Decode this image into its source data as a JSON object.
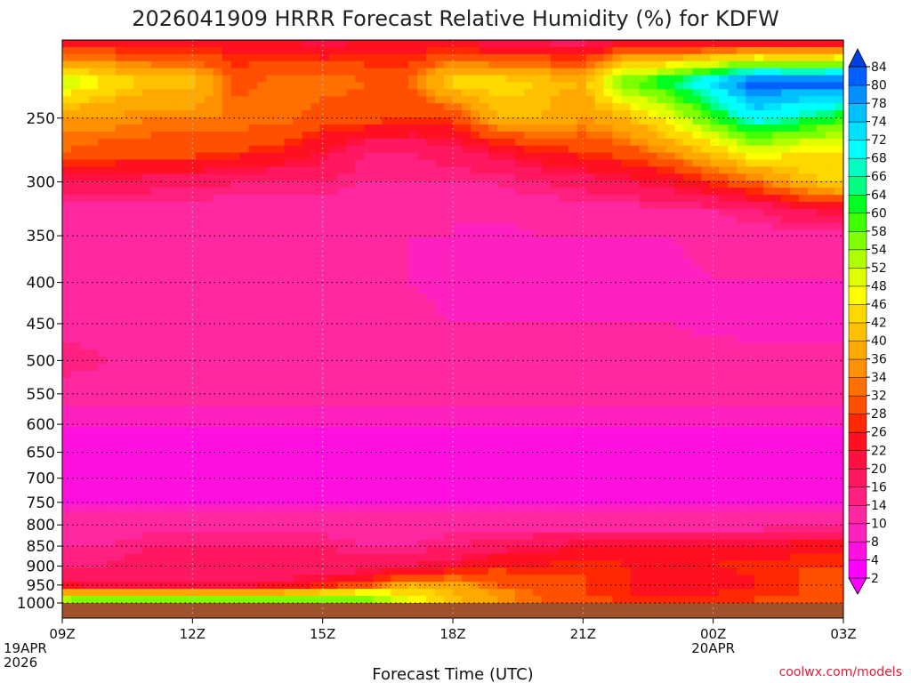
{
  "chart_data": {
    "type": "heatmap",
    "title": "2026041909 HRRR Forecast Relative Humidity (%) for KDFW",
    "xlabel": "Forecast Time (UTC)",
    "ylabel": "",
    "x_ticks": [
      {
        "hour": 0,
        "lines": [
          "09Z",
          "19APR",
          "2026"
        ]
      },
      {
        "hour": 3,
        "lines": [
          "12Z"
        ]
      },
      {
        "hour": 6,
        "lines": [
          "15Z"
        ]
      },
      {
        "hour": 9,
        "lines": [
          "18Z"
        ]
      },
      {
        "hour": 12,
        "lines": [
          "21Z"
        ]
      },
      {
        "hour": 15,
        "lines": [
          "00Z",
          "20APR"
        ]
      },
      {
        "hour": 18,
        "lines": [
          "03Z"
        ]
      }
    ],
    "x_hours": [
      0,
      1,
      2,
      3,
      4,
      5,
      6,
      7,
      8,
      9,
      10,
      11,
      12,
      13,
      14,
      15,
      16,
      17,
      18
    ],
    "y_ticks": [
      250,
      300,
      350,
      400,
      450,
      500,
      550,
      600,
      650,
      700,
      750,
      800,
      850,
      900,
      950,
      1000
    ],
    "ylim": [
      1000,
      200
    ],
    "y_scale": "log-pressure",
    "grid": true,
    "pressure_levels": [
      200,
      225,
      250,
      275,
      300,
      325,
      350,
      400,
      450,
      500,
      550,
      600,
      650,
      700,
      750,
      800,
      850,
      900,
      925,
      950,
      975,
      1000
    ],
    "values": [
      [
        20,
        22,
        22,
        22,
        24,
        22,
        20,
        22,
        22,
        22,
        18,
        18,
        18,
        20,
        20,
        18,
        18,
        18,
        18
      ],
      [
        52,
        46,
        42,
        42,
        30,
        34,
        34,
        32,
        32,
        44,
        44,
        42,
        40,
        58,
        64,
        74,
        84,
        82,
        84
      ],
      [
        36,
        36,
        34,
        34,
        34,
        34,
        30,
        30,
        28,
        28,
        40,
        40,
        36,
        40,
        48,
        60,
        70,
        66,
        60
      ],
      [
        32,
        30,
        30,
        30,
        28,
        26,
        22,
        16,
        16,
        18,
        22,
        26,
        28,
        30,
        36,
        42,
        50,
        46,
        46
      ],
      [
        20,
        20,
        18,
        18,
        16,
        16,
        16,
        14,
        14,
        14,
        14,
        16,
        18,
        20,
        22,
        28,
        32,
        40,
        44
      ],
      [
        12,
        12,
        12,
        12,
        12,
        12,
        12,
        10,
        10,
        10,
        12,
        12,
        12,
        12,
        14,
        14,
        16,
        20,
        22
      ],
      [
        12,
        12,
        10,
        10,
        10,
        10,
        10,
        10,
        10,
        10,
        8,
        10,
        10,
        10,
        10,
        12,
        12,
        12,
        12
      ],
      [
        10,
        10,
        10,
        10,
        10,
        10,
        10,
        10,
        10,
        8,
        8,
        8,
        8,
        8,
        8,
        10,
        10,
        10,
        10
      ],
      [
        12,
        12,
        12,
        12,
        12,
        12,
        12,
        12,
        12,
        10,
        10,
        10,
        10,
        10,
        10,
        8,
        8,
        8,
        8
      ],
      [
        16,
        14,
        14,
        14,
        14,
        14,
        14,
        14,
        14,
        14,
        14,
        14,
        14,
        14,
        14,
        14,
        12,
        12,
        12
      ],
      [
        12,
        12,
        12,
        12,
        12,
        12,
        12,
        12,
        12,
        12,
        12,
        12,
        12,
        12,
        12,
        12,
        12,
        12,
        12
      ],
      [
        8,
        8,
        8,
        8,
        8,
        8,
        8,
        8,
        8,
        8,
        8,
        8,
        8,
        8,
        8,
        8,
        8,
        8,
        8
      ],
      [
        4,
        4,
        4,
        4,
        4,
        4,
        4,
        4,
        4,
        4,
        4,
        4,
        4,
        4,
        4,
        4,
        4,
        4,
        4
      ],
      [
        4,
        4,
        4,
        4,
        4,
        4,
        4,
        4,
        4,
        4,
        4,
        4,
        4,
        4,
        4,
        4,
        4,
        4,
        4
      ],
      [
        8,
        8,
        8,
        8,
        8,
        8,
        8,
        8,
        8,
        8,
        8,
        8,
        8,
        8,
        8,
        8,
        8,
        8,
        8
      ],
      [
        12,
        12,
        12,
        12,
        12,
        12,
        12,
        12,
        12,
        12,
        12,
        12,
        12,
        12,
        12,
        12,
        12,
        12,
        12
      ],
      [
        14,
        14,
        16,
        16,
        16,
        16,
        16,
        14,
        14,
        16,
        18,
        20,
        22,
        22,
        22,
        22,
        22,
        24,
        24
      ],
      [
        16,
        16,
        18,
        20,
        20,
        20,
        18,
        18,
        20,
        22,
        26,
        26,
        28,
        26,
        26,
        26,
        28,
        28,
        28
      ],
      [
        18,
        18,
        18,
        18,
        18,
        18,
        20,
        22,
        28,
        30,
        30,
        28,
        28,
        26,
        24,
        24,
        26,
        28,
        28
      ],
      [
        22,
        20,
        20,
        20,
        20,
        22,
        26,
        30,
        40,
        38,
        32,
        30,
        28,
        26,
        24,
        24,
        26,
        28,
        28
      ],
      [
        40,
        44,
        42,
        40,
        40,
        44,
        46,
        52,
        46,
        40,
        36,
        32,
        28,
        26,
        26,
        26,
        28,
        28,
        28
      ],
      [
        62,
        66,
        66,
        64,
        64,
        64,
        62,
        58,
        50,
        42,
        36,
        32,
        30,
        28,
        26,
        26,
        28,
        28,
        28
      ]
    ],
    "colorbar": {
      "labels": [
        2,
        4,
        8,
        10,
        14,
        16,
        20,
        22,
        26,
        28,
        32,
        34,
        36,
        40,
        42,
        46,
        48,
        52,
        54,
        58,
        60,
        64,
        66,
        68,
        72,
        74,
        78,
        80,
        84
      ],
      "colors": [
        "#ff00ff",
        "#ff10e0",
        "#ff20c0",
        "#ff28a0",
        "#ff2080",
        "#ff1860",
        "#ff1040",
        "#ff1020",
        "#ff2800",
        "#ff5000",
        "#ff7000",
        "#ff9000",
        "#ffa800",
        "#ffc000",
        "#ffd800",
        "#ffff00",
        "#e0ff00",
        "#b0ff00",
        "#80ff00",
        "#40ff00",
        "#00ff20",
        "#00ff80",
        "#00ffc0",
        "#00ffff",
        "#00e0ff",
        "#00c0ff",
        "#0090ff",
        "#0060ff",
        "#0040e0"
      ],
      "extend": "both"
    },
    "terrain_color": "#a0522d"
  },
  "credit": "coolwx.com/models"
}
